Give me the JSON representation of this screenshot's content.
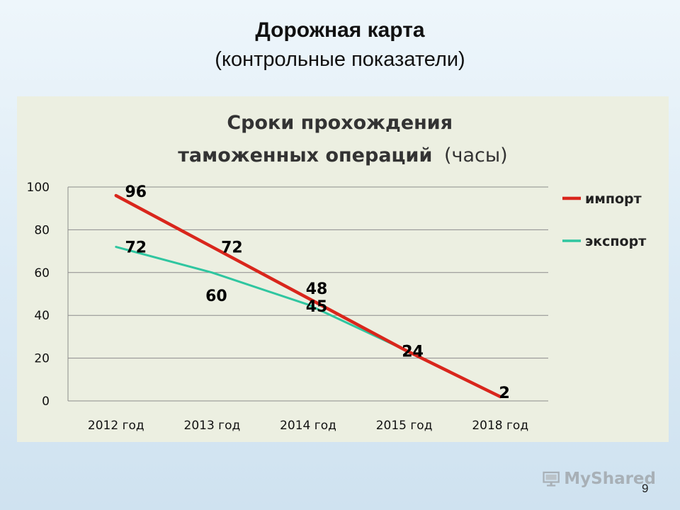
{
  "slide": {
    "title_line1": "Дорожная карта",
    "title_line2": "(контрольные показатели)",
    "page_number": "9",
    "watermark": "MyShared"
  },
  "colors": {
    "import": "#d9261c",
    "export": "#2fc6a0",
    "grid": "#8c8c8c",
    "panel": "#ecefe1"
  },
  "chart_data": {
    "type": "line",
    "title_bold": "Сроки прохождения таможенных операций",
    "title_regular": "(часы)",
    "categories": [
      "2012 год",
      "2013 год",
      "2014 год",
      "2015 год",
      "2018 год"
    ],
    "series": [
      {
        "name": "импорт",
        "values": [
          96,
          72,
          48,
          24,
          2
        ]
      },
      {
        "name": "экспорт",
        "values": [
          72,
          60,
          45,
          24,
          2
        ]
      }
    ],
    "ylim": [
      0,
      100
    ],
    "yticks": [
      0,
      20,
      40,
      60,
      80,
      100
    ],
    "grid": true,
    "legend": "right"
  }
}
